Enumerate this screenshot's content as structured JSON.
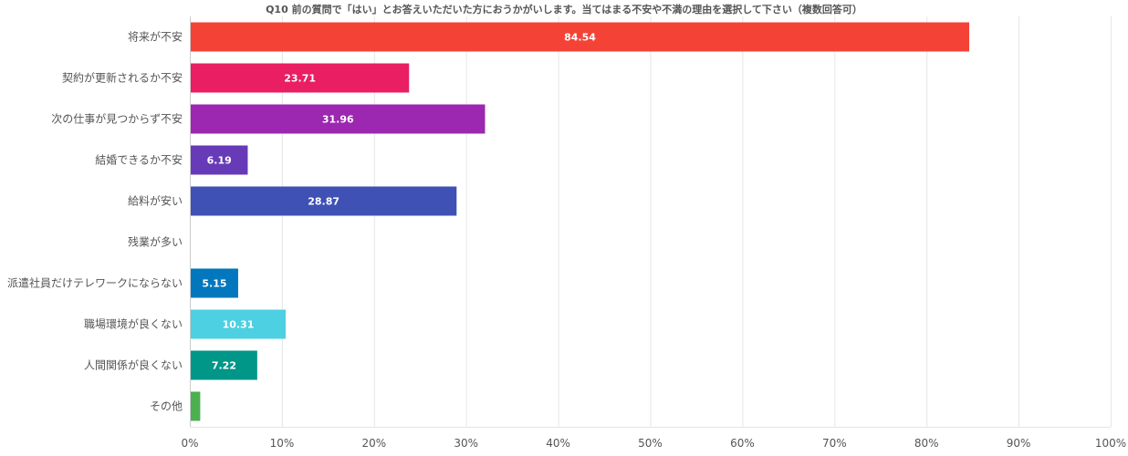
{
  "chart_data": {
    "type": "bar",
    "orientation": "horizontal",
    "title": "Q10 前の質問で「はい」とお答えいただいた方におうかがいします。当てはまる不安や不満の理由を選択して下さい（複数回答可）",
    "categories": [
      "将来が不安",
      "契約が更新されるか不安",
      "次の仕事が見つからず不安",
      "結婚できるか不安",
      "給料が安い",
      "残業が多い",
      "派遣社員だけテレワークにならない",
      "職場環境が良くない",
      "人間関係が良くない",
      "その他"
    ],
    "values": [
      84.54,
      23.71,
      31.96,
      6.19,
      28.87,
      0,
      5.15,
      10.31,
      7.22,
      1.03
    ],
    "value_labels": [
      "84.54",
      "23.71",
      "31.96",
      "6.19",
      "28.87",
      "",
      "5.15",
      "10.31",
      "7.22",
      ""
    ],
    "colors": [
      "#f44336",
      "#e91e63",
      "#9c27b0",
      "#673ab7",
      "#3f51b5",
      "#2196f3",
      "#0277bd",
      "#4dd0e1",
      "#009688",
      "#4caf50"
    ],
    "xlim": [
      0,
      100
    ],
    "xticks": [
      "0%",
      "10%",
      "20%",
      "30%",
      "40%",
      "50%",
      "60%",
      "70%",
      "80%",
      "90%",
      "100%"
    ],
    "xlabel": "",
    "ylabel": "",
    "grid": true,
    "legend": "none"
  }
}
